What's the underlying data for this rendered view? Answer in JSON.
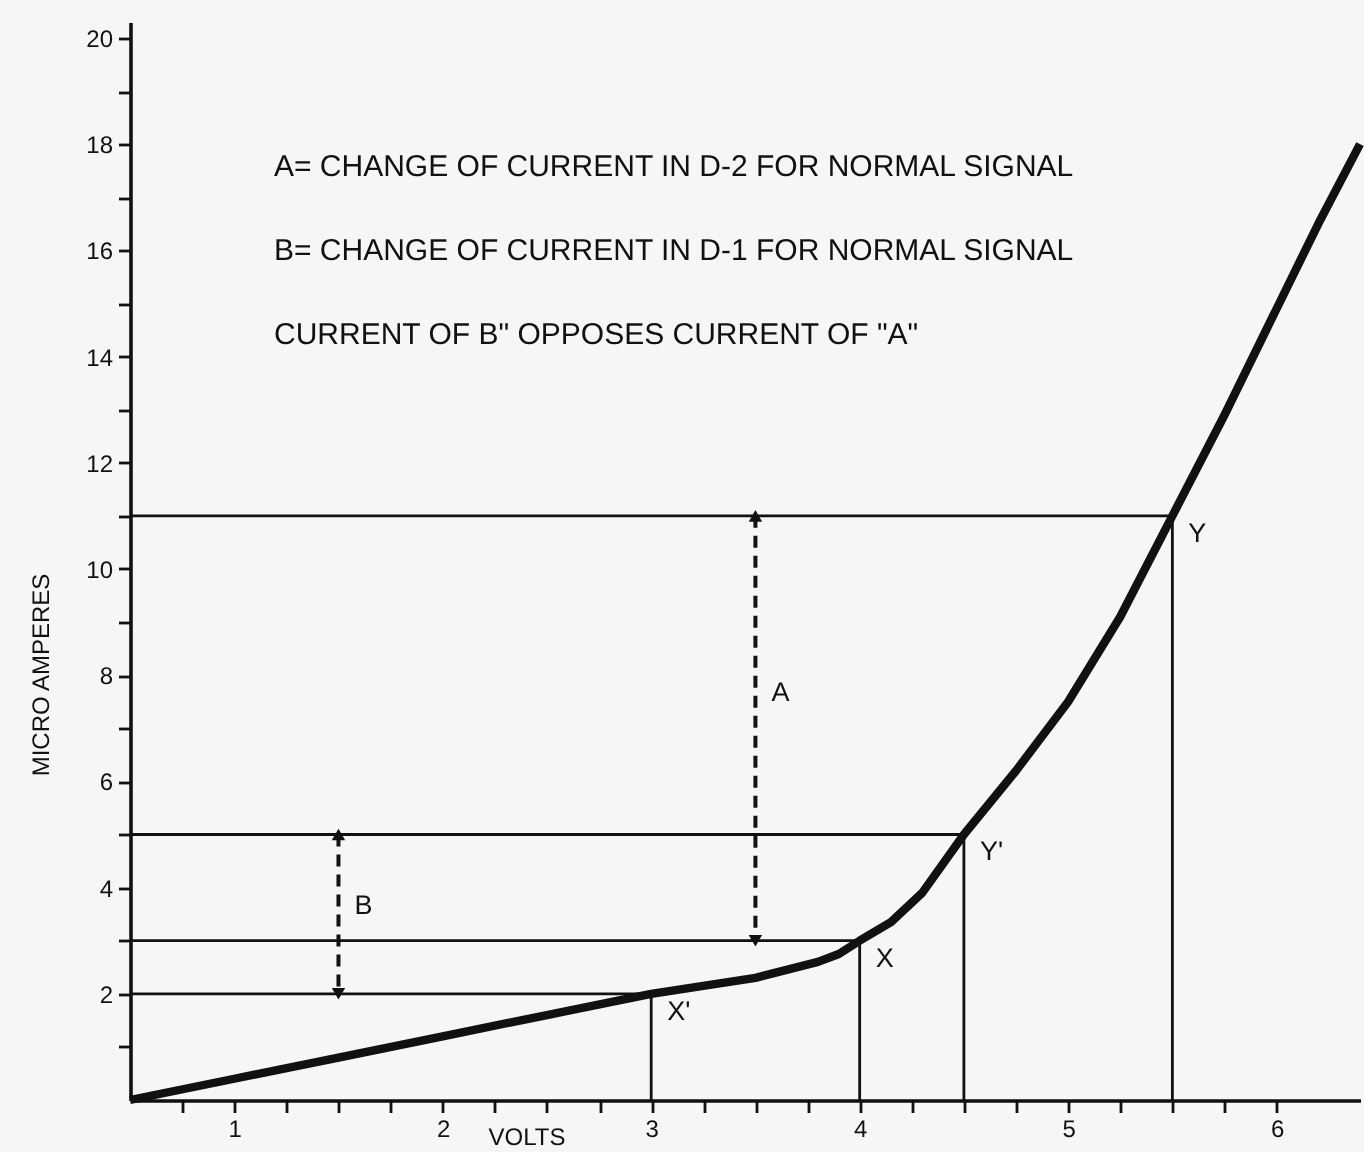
{
  "chart_data": {
    "type": "line",
    "xlabel": "VOLTS",
    "ylabel": "MICRO AMPERES",
    "xlim": [
      0.5,
      6.4
    ],
    "ylim": [
      0,
      20.3
    ],
    "xticks": [
      {
        "value": 0.75,
        "label": null
      },
      1,
      {
        "value": 1.25,
        "label": null
      },
      {
        "value": 1.5,
        "label": null
      },
      {
        "value": 1.75,
        "label": null
      },
      2,
      {
        "value": 2.25,
        "label": null
      },
      {
        "value": 2.5,
        "label": null
      },
      {
        "value": 2.75,
        "label": null
      },
      3,
      {
        "value": 3.25,
        "label": null
      },
      {
        "value": 3.5,
        "label": null
      },
      {
        "value": 3.75,
        "label": null
      },
      4,
      {
        "value": 4.25,
        "label": null
      },
      {
        "value": 4.5,
        "label": null
      },
      {
        "value": 4.75,
        "label": null
      },
      5,
      {
        "value": 5.25,
        "label": null
      },
      {
        "value": 5.5,
        "label": null
      },
      {
        "value": 5.75,
        "label": null
      },
      6
    ],
    "yticks": [
      {
        "value": 1,
        "label": null
      },
      2,
      {
        "value": 3,
        "label": null
      },
      4,
      {
        "value": 5,
        "label": null
      },
      6,
      {
        "value": 7,
        "label": null
      },
      8,
      {
        "value": 9,
        "label": null
      },
      10,
      {
        "value": 11,
        "label": null
      },
      12,
      {
        "value": 13,
        "label": null
      },
      14,
      {
        "value": 15,
        "label": null
      },
      16,
      {
        "value": 17,
        "label": null
      },
      18,
      {
        "value": 19,
        "label": null
      },
      20
    ],
    "series": [
      {
        "color": "#111111",
        "x": [
          0.5,
          1,
          1.5,
          2,
          2.5,
          3,
          3.5,
          3.8,
          3.9,
          4,
          4.15,
          4.3,
          4.5,
          4.75,
          5,
          5.25,
          5.5,
          5.75,
          6,
          6.2,
          6.4
        ],
        "values": [
          0,
          0.4,
          0.8,
          1.2,
          1.6,
          2,
          2.3,
          2.6,
          2.75,
          3,
          3.35,
          3.9,
          5,
          6.2,
          7.5,
          9.1,
          11,
          12.9,
          14.9,
          16.5,
          18
        ]
      },
      {
        "color": "#111111",
        "x": [
          0.5,
          3,
          3
        ],
        "values": [
          2,
          2,
          0
        ]
      },
      {
        "color": "#111111",
        "x": [
          0.5,
          4,
          4
        ],
        "values": [
          3,
          3,
          0
        ]
      },
      {
        "color": "#111111",
        "x": [
          0.5,
          4.5,
          4.5
        ],
        "values": [
          5,
          5,
          0
        ]
      },
      {
        "color": "#111111",
        "x": [
          0.5,
          5.5,
          5.5
        ],
        "values": [
          11,
          11,
          0
        ]
      },
      {
        "color": "#111111",
        "x": [
          3.5,
          3.5
        ],
        "values": [
          11,
          3
        ],
        "line_style": "dashed",
        "marker": "triangle"
      },
      {
        "color": "#111111",
        "x": [
          1.5,
          1.5
        ],
        "values": [
          5,
          2
        ],
        "line_style": "dashed",
        "marker": "triangle"
      }
    ],
    "annotations": [
      "A= CHANGE OF CURRENT IN D-2 FOR NORMAL SIGNAL",
      "B= CHANGE OF CURRENT IN D-1 FOR NORMAL SIGNAL",
      "CURRENT OF B\" OPPOSES CURRENT OF \"A\"",
      {
        "text": "A",
        "x": 3.5,
        "y": 8
      },
      {
        "text": "B",
        "x": 1.5,
        "y": 4
      },
      {
        "text": "X'",
        "x": 3,
        "y": 2
      },
      {
        "text": "X",
        "x": 4,
        "y": 3
      },
      {
        "text": "Y'",
        "x": 4.5,
        "y": 5
      },
      {
        "text": "Y",
        "x": 5.5,
        "y": 11
      }
    ]
  }
}
